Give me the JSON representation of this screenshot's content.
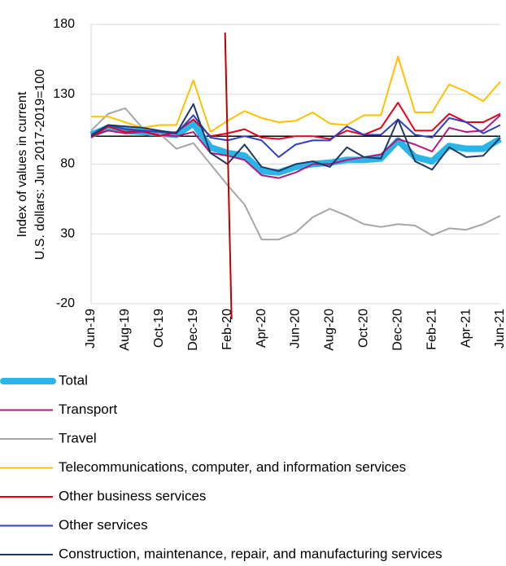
{
  "chart_data": {
    "type": "line",
    "ylabel": [
      "Index of values in current",
      "U.S. dollars: Jun 2017-2019=100"
    ],
    "categories": [
      "Jun-19",
      null,
      "Aug-19",
      null,
      "Oct-19",
      null,
      "Dec-19",
      null,
      "Feb-20",
      null,
      "Apr-20",
      null,
      "Jun-20",
      null,
      "Aug-20",
      null,
      "Oct-20",
      null,
      "Dec-20",
      null,
      "Feb-21",
      null,
      "Apr-21",
      null,
      "Jun-21"
    ],
    "ylim": [
      -20,
      180
    ],
    "yticks": [
      -20,
      30,
      80,
      130,
      180
    ],
    "grid": true,
    "reference_lines": {
      "y": 100,
      "x": "Feb-20"
    },
    "series": [
      {
        "name": "Total",
        "color": "#29b5e8",
        "width": 8,
        "values": [
          101,
          106,
          104,
          103,
          102,
          101,
          109,
          92,
          88,
          86,
          75,
          74,
          78,
          80,
          81,
          83,
          83,
          84,
          97,
          85,
          82,
          93,
          91,
          91,
          98
        ]
      },
      {
        "name": "Transport",
        "color": "#b5177e",
        "width": 2,
        "values": [
          100,
          104,
          102,
          103,
          101,
          100,
          103,
          88,
          86,
          83,
          72,
          70,
          74,
          80,
          80,
          83,
          85,
          87,
          98,
          94,
          89,
          106,
          103,
          104,
          115
        ]
      },
      {
        "name": "Travel",
        "color": "#a6a6a6",
        "width": 2,
        "values": [
          104,
          116,
          120,
          106,
          102,
          91,
          95,
          80,
          65,
          51,
          26,
          26,
          31,
          42,
          48,
          43,
          37,
          35,
          37,
          36,
          29,
          34,
          33,
          37,
          43
        ]
      },
      {
        "name": "Telecommunications, computer, and information services",
        "color": "#ffc000",
        "width": 2,
        "values": [
          114,
          114,
          110,
          106,
          108,
          108,
          140,
          103,
          111,
          118,
          113,
          110,
          111,
          117,
          109,
          108,
          115,
          115,
          157,
          117,
          117,
          137,
          132,
          125,
          139
        ]
      },
      {
        "name": "Other business services",
        "color": "#e3001b",
        "width": 2,
        "values": [
          99,
          107,
          103,
          104,
          100,
          103,
          112,
          100,
          102,
          105,
          99,
          98,
          100,
          100,
          98,
          104,
          101,
          106,
          124,
          104,
          104,
          116,
          110,
          110,
          116
        ]
      },
      {
        "name": "Other services",
        "color": "#2f3fbf",
        "width": 2,
        "values": [
          101,
          108,
          105,
          104,
          103,
          102,
          115,
          99,
          97,
          100,
          97,
          85,
          94,
          97,
          97,
          107,
          101,
          101,
          112,
          101,
          99,
          113,
          110,
          102,
          108
        ]
      },
      {
        "name": "Construction, maintenance, repair, and manufacturing services",
        "color": "#1f3864",
        "width": 2,
        "values": [
          100,
          108,
          107,
          106,
          104,
          102,
          123,
          88,
          80,
          94,
          78,
          75,
          80,
          82,
          78,
          92,
          85,
          84,
          112,
          82,
          76,
          92,
          85,
          86,
          99
        ]
      }
    ]
  }
}
